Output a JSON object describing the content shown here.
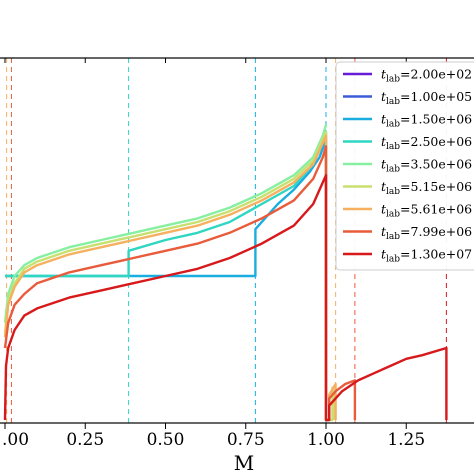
{
  "chart_data": {
    "type": "line",
    "xlabel": "M",
    "xlim": [
      0.0,
      1.4
    ],
    "ylim": [
      0.0,
      1.0
    ],
    "x_ticks": [
      0.0,
      0.25,
      0.5,
      0.75,
      1.0,
      1.25
    ],
    "x_tick_labels": [
      ".00",
      "0.25",
      "0.50",
      "0.75",
      "1.00",
      "1.25"
    ],
    "grid": false,
    "legend_position": "right",
    "legend_prefix": "t",
    "legend_sub": "lab",
    "series": [
      {
        "label": "=2.00e+02",
        "color": "#6a1bd8",
        "shock_x": null,
        "points": [
          [
            0.0,
            0.0
          ],
          [
            0.0,
            0.0
          ]
        ]
      },
      {
        "label": "=1.00e+05",
        "color": "#3b5bd9",
        "shock_x": null,
        "points": [
          [
            0.0,
            0.0
          ],
          [
            0.0,
            0.0
          ]
        ]
      },
      {
        "label": "=1.50e+06",
        "color": "#1aaee0",
        "shock_x": 0.78,
        "points": [
          [
            0.0,
            0.4
          ],
          [
            0.78,
            0.4
          ],
          [
            0.78,
            0.53
          ],
          [
            0.85,
            0.6
          ],
          [
            0.9,
            0.64
          ],
          [
            0.95,
            0.69
          ],
          [
            0.98,
            0.73
          ],
          [
            1.0,
            0.78
          ],
          [
            1.0,
            0.4
          ],
          [
            1.0,
            0.0
          ]
        ]
      },
      {
        "label": "=2.50e+06",
        "color": "#2fd6c2",
        "shock_x": 0.385,
        "points": [
          [
            0.0,
            0.4
          ],
          [
            0.385,
            0.4
          ],
          [
            0.385,
            0.47
          ],
          [
            0.5,
            0.5
          ],
          [
            0.6,
            0.52
          ],
          [
            0.7,
            0.55
          ],
          [
            0.8,
            0.6
          ],
          [
            0.9,
            0.65
          ],
          [
            0.95,
            0.7
          ],
          [
            0.98,
            0.75
          ],
          [
            1.0,
            0.8
          ],
          [
            1.0,
            0.4
          ]
        ]
      },
      {
        "label": "=3.50e+06",
        "color": "#86f0a0",
        "shock_x": null,
        "points": [
          [
            0.0,
            0.27
          ],
          [
            0.01,
            0.35
          ],
          [
            0.03,
            0.4
          ],
          [
            0.06,
            0.43
          ],
          [
            0.1,
            0.45
          ],
          [
            0.2,
            0.48
          ],
          [
            0.3,
            0.5
          ],
          [
            0.4,
            0.52
          ],
          [
            0.5,
            0.54
          ],
          [
            0.6,
            0.56
          ],
          [
            0.7,
            0.59
          ],
          [
            0.8,
            0.63
          ],
          [
            0.9,
            0.68
          ],
          [
            0.96,
            0.73
          ],
          [
            0.99,
            0.79
          ],
          [
            1.0,
            0.82
          ]
        ]
      },
      {
        "label": "=5.15e+06",
        "color": "#c8e070",
        "shock_x": null,
        "points": [
          [
            0.0,
            0.24
          ],
          [
            0.01,
            0.33
          ],
          [
            0.03,
            0.38
          ],
          [
            0.06,
            0.42
          ],
          [
            0.1,
            0.44
          ],
          [
            0.2,
            0.47
          ],
          [
            0.3,
            0.49
          ],
          [
            0.4,
            0.51
          ],
          [
            0.5,
            0.53
          ],
          [
            0.6,
            0.55
          ],
          [
            0.7,
            0.58
          ],
          [
            0.8,
            0.62
          ],
          [
            0.9,
            0.67
          ],
          [
            0.96,
            0.72
          ],
          [
            0.99,
            0.78
          ],
          [
            1.0,
            0.8
          ],
          [
            1.0,
            0.0
          ],
          [
            1.02,
            0.0
          ],
          [
            1.02,
            0.09
          ],
          [
            1.025,
            0.07
          ],
          [
            1.025,
            0.0
          ]
        ]
      },
      {
        "label": "=5.61e+06",
        "color": "#f5b060",
        "shock_x": 1.03,
        "points": [
          [
            0.0,
            0.23
          ],
          [
            0.01,
            0.32
          ],
          [
            0.03,
            0.37
          ],
          [
            0.06,
            0.41
          ],
          [
            0.1,
            0.43
          ],
          [
            0.2,
            0.46
          ],
          [
            0.3,
            0.48
          ],
          [
            0.4,
            0.5
          ],
          [
            0.5,
            0.52
          ],
          [
            0.6,
            0.54
          ],
          [
            0.7,
            0.57
          ],
          [
            0.8,
            0.61
          ],
          [
            0.9,
            0.66
          ],
          [
            0.96,
            0.71
          ],
          [
            0.99,
            0.77
          ],
          [
            1.0,
            0.79
          ],
          [
            1.0,
            0.0
          ],
          [
            1.01,
            0.0
          ],
          [
            1.01,
            0.07
          ],
          [
            1.03,
            0.1
          ],
          [
            1.03,
            0.0
          ]
        ]
      },
      {
        "label": "=7.99e+06",
        "color": "#e85c3c",
        "shock_x": 1.09,
        "points": [
          [
            0.0,
            0.2
          ],
          [
            0.01,
            0.27
          ],
          [
            0.03,
            0.32
          ],
          [
            0.06,
            0.35
          ],
          [
            0.1,
            0.38
          ],
          [
            0.2,
            0.41
          ],
          [
            0.3,
            0.43
          ],
          [
            0.4,
            0.45
          ],
          [
            0.5,
            0.47
          ],
          [
            0.6,
            0.49
          ],
          [
            0.7,
            0.52
          ],
          [
            0.8,
            0.56
          ],
          [
            0.9,
            0.61
          ],
          [
            0.96,
            0.67
          ],
          [
            0.99,
            0.73
          ],
          [
            1.0,
            0.76
          ],
          [
            1.0,
            0.0
          ],
          [
            1.01,
            0.0
          ],
          [
            1.01,
            0.06
          ],
          [
            1.03,
            0.08
          ],
          [
            1.06,
            0.1
          ],
          [
            1.09,
            0.11
          ],
          [
            1.09,
            0.0
          ]
        ]
      },
      {
        "label": "=1.30e+07",
        "color": "#d7191c",
        "shock_x": 1.375,
        "points": [
          [
            0.0,
            0.0
          ],
          [
            0.003,
            0.15
          ],
          [
            0.01,
            0.2
          ],
          [
            0.03,
            0.25
          ],
          [
            0.06,
            0.29
          ],
          [
            0.1,
            0.31
          ],
          [
            0.2,
            0.34
          ],
          [
            0.3,
            0.36
          ],
          [
            0.4,
            0.38
          ],
          [
            0.5,
            0.4
          ],
          [
            0.6,
            0.42
          ],
          [
            0.7,
            0.45
          ],
          [
            0.8,
            0.49
          ],
          [
            0.9,
            0.54
          ],
          [
            0.96,
            0.6
          ],
          [
            0.99,
            0.66
          ],
          [
            1.0,
            0.68
          ],
          [
            1.0,
            0.0
          ],
          [
            1.01,
            0.0
          ],
          [
            1.01,
            0.04
          ],
          [
            1.05,
            0.08
          ],
          [
            1.1,
            0.11
          ],
          [
            1.15,
            0.13
          ],
          [
            1.2,
            0.15
          ],
          [
            1.25,
            0.17
          ],
          [
            1.3,
            0.18
          ],
          [
            1.375,
            0.2
          ],
          [
            1.375,
            0.0
          ]
        ]
      }
    ],
    "vlines": [
      {
        "x": 0.005,
        "color": "#f5b060"
      },
      {
        "x": 0.02,
        "color": "#e85c3c"
      },
      {
        "x": 0.385,
        "color": "#2fd6c2"
      },
      {
        "x": 0.78,
        "color": "#1aaee0"
      },
      {
        "x": 1.0,
        "color": "#1aaee0"
      },
      {
        "x": 1.03,
        "color": "#f5b060"
      },
      {
        "x": 1.09,
        "color": "#e85c3c"
      },
      {
        "x": 1.375,
        "color": "#d7191c"
      }
    ]
  }
}
